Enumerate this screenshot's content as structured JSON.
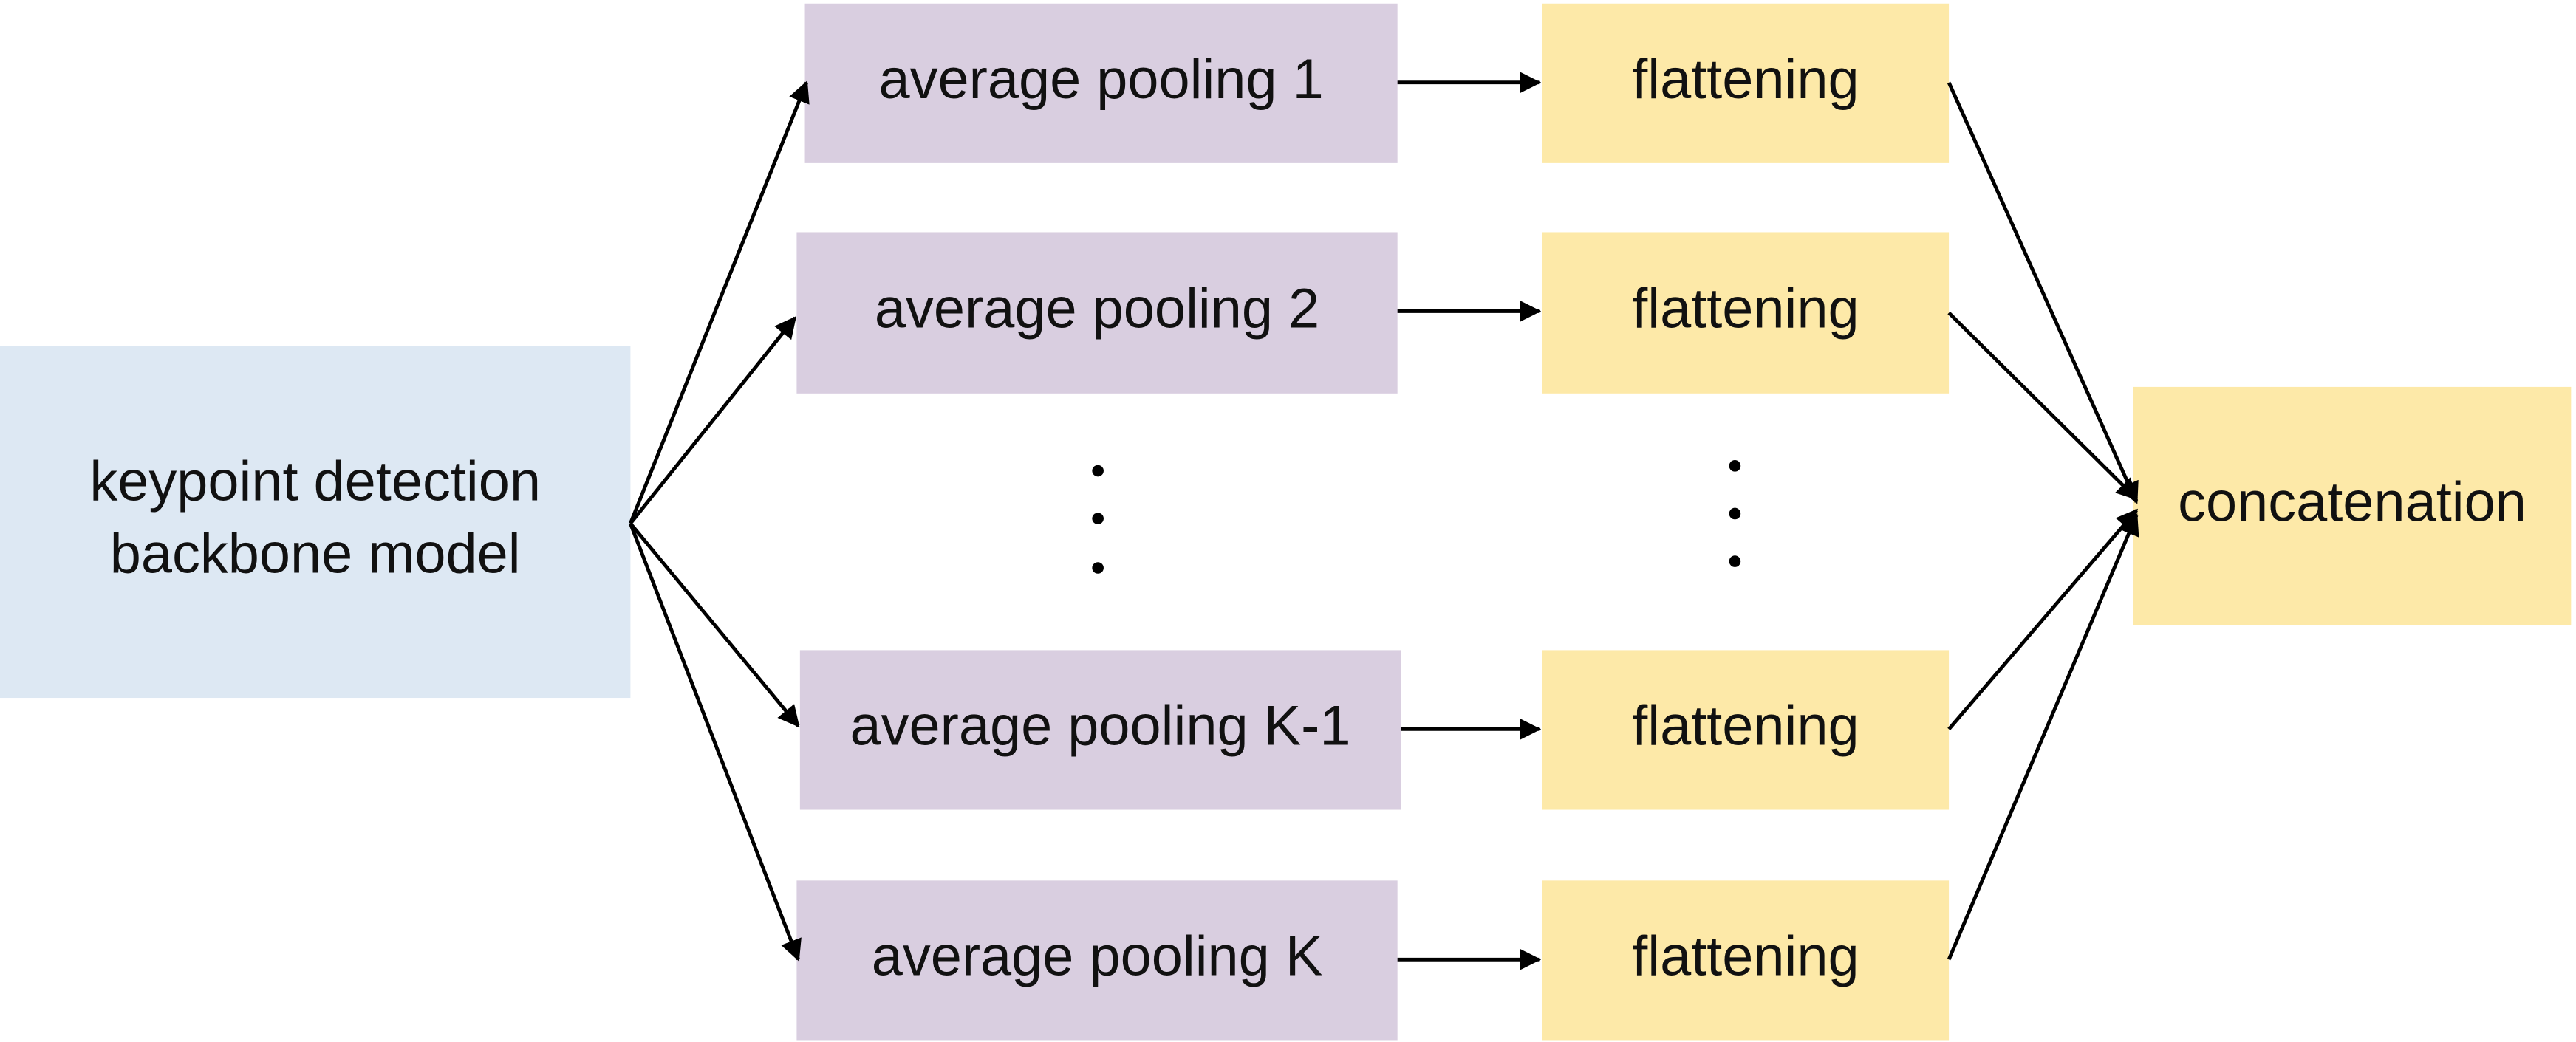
{
  "nodes": [
    {
      "lines": [
        "keypoint detection",
        "backbone model"
      ]
    },
    {
      "lines": [
        "average pooling 1"
      ]
    },
    {
      "lines": [
        "average pooling 2"
      ]
    },
    {
      "lines": [
        "average pooling K-1"
      ]
    },
    {
      "lines": [
        "average pooling K"
      ]
    },
    {
      "lines": [
        "flattening"
      ]
    },
    {
      "lines": [
        "flattening"
      ]
    },
    {
      "lines": [
        "flattening"
      ]
    },
    {
      "lines": [
        "flattening"
      ]
    },
    {
      "lines": [
        "concatenation"
      ]
    }
  ]
}
